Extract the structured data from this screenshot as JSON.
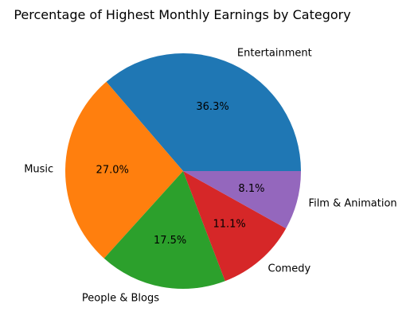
{
  "chart_data": {
    "type": "pie",
    "title": "Percentage of Highest Monthly Earnings by Category",
    "categories": [
      "Entertainment",
      "Music",
      "People & Blogs",
      "Comedy",
      "Film & Animation"
    ],
    "values": [
      36.3,
      27.0,
      17.5,
      11.1,
      8.1
    ],
    "value_labels": [
      "36.3%",
      "27.0%",
      "17.5%",
      "11.1%",
      "8.1%"
    ],
    "colors": [
      "#1f77b4",
      "#ff7f0e",
      "#2ca02c",
      "#d62728",
      "#9467bd"
    ],
    "start_angle_deg": 0,
    "direction": "counterclockwise",
    "legend": "none"
  }
}
